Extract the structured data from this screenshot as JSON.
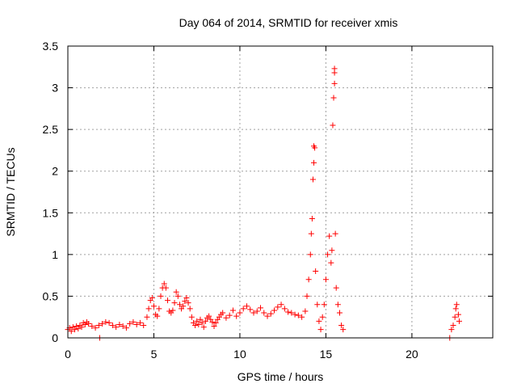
{
  "chart_data": {
    "type": "scatter",
    "title": "Day 064 of 2014, SRMTID for receiver xmis",
    "xlabel": "GPS time / hours",
    "ylabel": "SRMTID / TECUs",
    "xlim": [
      0,
      24.7
    ],
    "ylim": [
      0,
      3.5
    ],
    "xticks": [
      0,
      5,
      10,
      15,
      20
    ],
    "yticks": [
      0,
      0.5,
      1,
      1.5,
      2,
      2.5,
      3,
      3.5
    ],
    "xtick_labels": [
      "0",
      "5",
      "10",
      "15",
      "20"
    ],
    "ytick_labels": [
      "0",
      "0.5",
      "1",
      "1.5",
      "2",
      "2.5",
      "3",
      "3.5"
    ],
    "grid": true,
    "marker": "plus",
    "colors": {
      "points": "#ff0000",
      "grid": "#a0a0a0",
      "axes": "#000000"
    },
    "series": [
      {
        "values_description": "SRMTID samples vs GPS time",
        "points": [
          [
            0.0,
            0.1
          ],
          [
            0.1,
            0.12
          ],
          [
            0.2,
            0.08
          ],
          [
            0.3,
            0.13
          ],
          [
            0.4,
            0.1
          ],
          [
            0.5,
            0.14
          ],
          [
            0.6,
            0.11
          ],
          [
            0.7,
            0.15
          ],
          [
            0.8,
            0.13
          ],
          [
            0.9,
            0.18
          ],
          [
            1.0,
            0.16
          ],
          [
            1.1,
            0.19
          ],
          [
            1.2,
            0.17
          ],
          [
            1.4,
            0.14
          ],
          [
            1.6,
            0.12
          ],
          [
            1.8,
            0.15
          ],
          [
            1.85,
            0.0
          ],
          [
            2.0,
            0.17
          ],
          [
            2.2,
            0.19
          ],
          [
            2.4,
            0.18
          ],
          [
            2.6,
            0.15
          ],
          [
            2.8,
            0.13
          ],
          [
            3.0,
            0.16
          ],
          [
            3.2,
            0.14
          ],
          [
            3.4,
            0.12
          ],
          [
            3.6,
            0.17
          ],
          [
            3.8,
            0.19
          ],
          [
            4.0,
            0.16
          ],
          [
            4.2,
            0.18
          ],
          [
            4.4,
            0.15
          ],
          [
            4.6,
            0.25
          ],
          [
            4.7,
            0.35
          ],
          [
            4.8,
            0.45
          ],
          [
            4.9,
            0.48
          ],
          [
            5.0,
            0.38
          ],
          [
            5.1,
            0.28
          ],
          [
            5.2,
            0.26
          ],
          [
            5.3,
            0.35
          ],
          [
            5.4,
            0.5
          ],
          [
            5.5,
            0.6
          ],
          [
            5.6,
            0.65
          ],
          [
            5.7,
            0.6
          ],
          [
            5.8,
            0.45
          ],
          [
            5.9,
            0.32
          ],
          [
            6.0,
            0.3
          ],
          [
            6.1,
            0.33
          ],
          [
            6.2,
            0.42
          ],
          [
            6.3,
            0.55
          ],
          [
            6.4,
            0.5
          ],
          [
            6.5,
            0.4
          ],
          [
            6.6,
            0.35
          ],
          [
            6.7,
            0.38
          ],
          [
            6.8,
            0.44
          ],
          [
            6.9,
            0.48
          ],
          [
            7.0,
            0.42
          ],
          [
            7.1,
            0.35
          ],
          [
            7.2,
            0.25
          ],
          [
            7.3,
            0.18
          ],
          [
            7.4,
            0.15
          ],
          [
            7.5,
            0.2
          ],
          [
            7.6,
            0.16
          ],
          [
            7.7,
            0.22
          ],
          [
            7.8,
            0.18
          ],
          [
            7.9,
            0.13
          ],
          [
            8.0,
            0.2
          ],
          [
            8.1,
            0.24
          ],
          [
            8.2,
            0.26
          ],
          [
            8.3,
            0.22
          ],
          [
            8.4,
            0.19
          ],
          [
            8.5,
            0.14
          ],
          [
            8.6,
            0.18
          ],
          [
            8.7,
            0.22
          ],
          [
            8.8,
            0.25
          ],
          [
            8.9,
            0.28
          ],
          [
            9.0,
            0.3
          ],
          [
            9.2,
            0.24
          ],
          [
            9.4,
            0.27
          ],
          [
            9.6,
            0.33
          ],
          [
            9.8,
            0.26
          ],
          [
            10.0,
            0.3
          ],
          [
            10.2,
            0.35
          ],
          [
            10.4,
            0.38
          ],
          [
            10.6,
            0.34
          ],
          [
            10.8,
            0.3
          ],
          [
            11.0,
            0.32
          ],
          [
            11.2,
            0.36
          ],
          [
            11.4,
            0.3
          ],
          [
            11.6,
            0.26
          ],
          [
            11.8,
            0.29
          ],
          [
            12.0,
            0.33
          ],
          [
            12.2,
            0.37
          ],
          [
            12.4,
            0.4
          ],
          [
            12.6,
            0.35
          ],
          [
            12.8,
            0.31
          ],
          [
            13.0,
            0.3
          ],
          [
            13.2,
            0.28
          ],
          [
            13.4,
            0.27
          ],
          [
            13.6,
            0.25
          ],
          [
            13.8,
            0.32
          ],
          [
            13.9,
            0.5
          ],
          [
            14.0,
            0.7
          ],
          [
            14.1,
            1.0
          ],
          [
            14.15,
            1.25
          ],
          [
            14.2,
            1.43
          ],
          [
            14.25,
            1.9
          ],
          [
            14.3,
            2.1
          ],
          [
            14.3,
            2.3
          ],
          [
            14.35,
            2.28
          ],
          [
            14.4,
            0.8
          ],
          [
            14.5,
            0.4
          ],
          [
            14.6,
            0.2
          ],
          [
            14.7,
            0.1
          ],
          [
            14.8,
            0.25
          ],
          [
            14.9,
            0.4
          ],
          [
            15.0,
            0.7
          ],
          [
            15.1,
            1.0
          ],
          [
            15.2,
            1.22
          ],
          [
            15.3,
            0.9
          ],
          [
            15.35,
            1.05
          ],
          [
            15.4,
            2.55
          ],
          [
            15.45,
            2.88
          ],
          [
            15.5,
            3.05
          ],
          [
            15.5,
            3.18
          ],
          [
            15.5,
            3.23
          ],
          [
            15.55,
            1.25
          ],
          [
            15.6,
            0.6
          ],
          [
            15.7,
            0.4
          ],
          [
            15.8,
            0.3
          ],
          [
            15.9,
            0.15
          ],
          [
            16.0,
            0.1
          ],
          [
            22.2,
            0.0
          ],
          [
            22.3,
            0.1
          ],
          [
            22.4,
            0.15
          ],
          [
            22.5,
            0.25
          ],
          [
            22.55,
            0.35
          ],
          [
            22.6,
            0.4
          ],
          [
            22.7,
            0.28
          ],
          [
            22.75,
            0.2
          ]
        ]
      }
    ]
  }
}
